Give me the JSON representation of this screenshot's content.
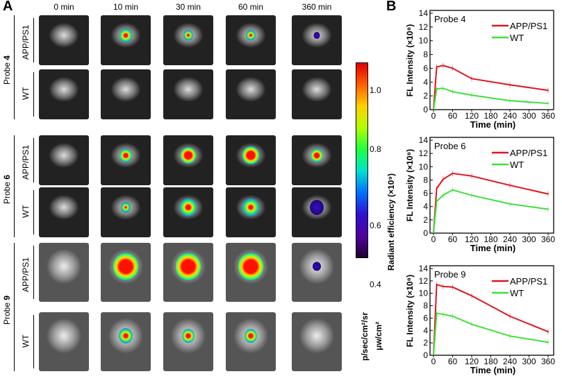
{
  "panel_a": {
    "label": "A",
    "columns": [
      "0 min",
      "10 min",
      "30 min",
      "60 min",
      "360 min"
    ],
    "groups": [
      {
        "probe": "Probe ",
        "num": "4",
        "rows": [
          "APP/PS1",
          "WT"
        ]
      },
      {
        "probe": "Probe ",
        "num": "6",
        "rows": [
          "APP/PS1",
          "WT"
        ]
      },
      {
        "probe": "Probe ",
        "num": "9",
        "rows": [
          "APP/PS1",
          "WT"
        ]
      }
    ],
    "colorbar": {
      "ticks": [
        "1.0",
        "0.8",
        "0.6",
        "0.4"
      ],
      "title": "Radiant efficiency (×10⁹)",
      "unit_top": "p/sec/cm²/sr",
      "unit_bottom": "μw/cm²"
    }
  },
  "panel_b": {
    "label": "B"
  },
  "chart_data": [
    {
      "type": "line",
      "title": "Probe 4",
      "x": [
        0,
        10,
        30,
        60,
        120,
        240,
        360
      ],
      "xlabel": "Time (min)",
      "ylabel": "FL Intensity (×10⁸)",
      "xlim": [
        0,
        360
      ],
      "ylim": [
        0,
        14
      ],
      "xticks": [
        0,
        60,
        120,
        180,
        240,
        300,
        360
      ],
      "yticks": [
        0,
        2,
        4,
        6,
        8,
        10,
        12,
        14
      ],
      "legend": "top-right",
      "series": [
        {
          "name": "APP/PS1",
          "color": "#e0141e",
          "values": [
            0,
            6.2,
            6.4,
            6.0,
            4.5,
            3.6,
            2.8
          ]
        },
        {
          "name": "WT",
          "color": "#3ee03a",
          "values": [
            0,
            3.0,
            3.1,
            2.6,
            2.1,
            1.3,
            0.9
          ]
        }
      ]
    },
    {
      "type": "line",
      "title": "Probe 6",
      "x": [
        0,
        10,
        30,
        60,
        120,
        240,
        360
      ],
      "xlabel": "Time (min)",
      "ylabel": "FL Intensity (×10⁸)",
      "xlim": [
        0,
        360
      ],
      "ylim": [
        0,
        14
      ],
      "xticks": [
        0,
        60,
        120,
        180,
        240,
        300,
        360
      ],
      "yticks": [
        0,
        2,
        4,
        6,
        8,
        10,
        12,
        14
      ],
      "legend": "top-right",
      "series": [
        {
          "name": "APP/PS1",
          "color": "#e0141e",
          "values": [
            0,
            6.7,
            8.1,
            9.0,
            8.6,
            7.2,
            5.9
          ]
        },
        {
          "name": "WT",
          "color": "#3ee03a",
          "values": [
            0,
            4.8,
            5.7,
            6.5,
            5.7,
            4.4,
            3.6
          ]
        }
      ]
    },
    {
      "type": "line",
      "title": "Probe 9",
      "x": [
        0,
        10,
        30,
        60,
        120,
        240,
        360
      ],
      "xlabel": "Time (min)",
      "ylabel": "FL Intensity (×10⁸)",
      "xlim": [
        0,
        360
      ],
      "ylim": [
        0,
        14
      ],
      "xticks": [
        0,
        60,
        120,
        180,
        240,
        300,
        360
      ],
      "yticks": [
        0,
        2,
        4,
        6,
        8,
        10,
        12,
        14
      ],
      "legend": "top-right",
      "series": [
        {
          "name": "APP/PS1",
          "color": "#e0141e",
          "values": [
            0,
            11.4,
            11.1,
            11.0,
            9.6,
            6.3,
            3.8
          ]
        },
        {
          "name": "WT",
          "color": "#3ee03a",
          "values": [
            0,
            6.8,
            6.6,
            6.3,
            5.0,
            3.1,
            2.1
          ]
        }
      ]
    }
  ]
}
